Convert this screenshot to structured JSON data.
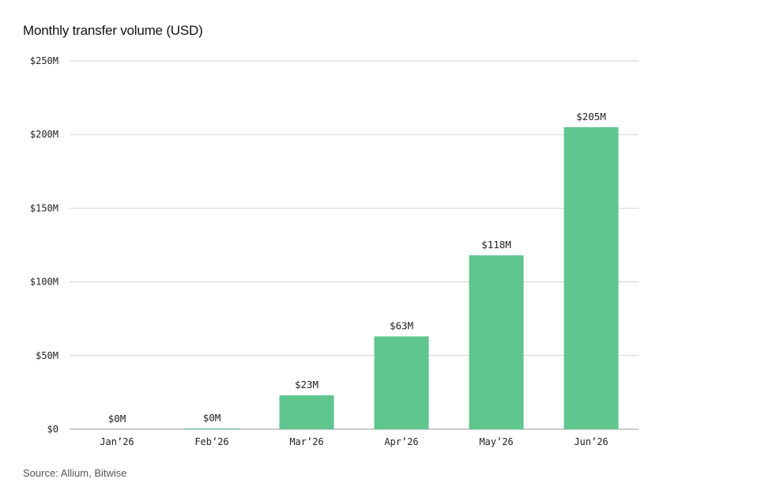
{
  "chart": {
    "title": "Monthly transfer volume (USD)",
    "source": "Source: Allium, Bitwise"
  },
  "colors": {
    "bar": "#5ec68e",
    "grid": "#d2d2d2",
    "axis": "#9a9a9a",
    "text": "#222222"
  },
  "chart_data": {
    "type": "bar",
    "title": "Monthly transfer volume (USD)",
    "categories": [
      "Jan’26",
      "Feb’26",
      "Mar’26",
      "Apr’26",
      "May’26",
      "Jun’26"
    ],
    "values": [
      0,
      0.5,
      23,
      63,
      118,
      205
    ],
    "value_labels": [
      "$0M",
      "$0M",
      "$23M",
      "$63M",
      "$118M",
      "$205M"
    ],
    "y_ticks": [
      0,
      50,
      100,
      150,
      200,
      250
    ],
    "y_tick_labels": [
      "$0",
      "$50M",
      "$100M",
      "$150M",
      "$200M",
      "$250M"
    ],
    "ylim": [
      0,
      250
    ],
    "xlabel": "",
    "ylabel": "",
    "grid": true,
    "legend": "none"
  }
}
